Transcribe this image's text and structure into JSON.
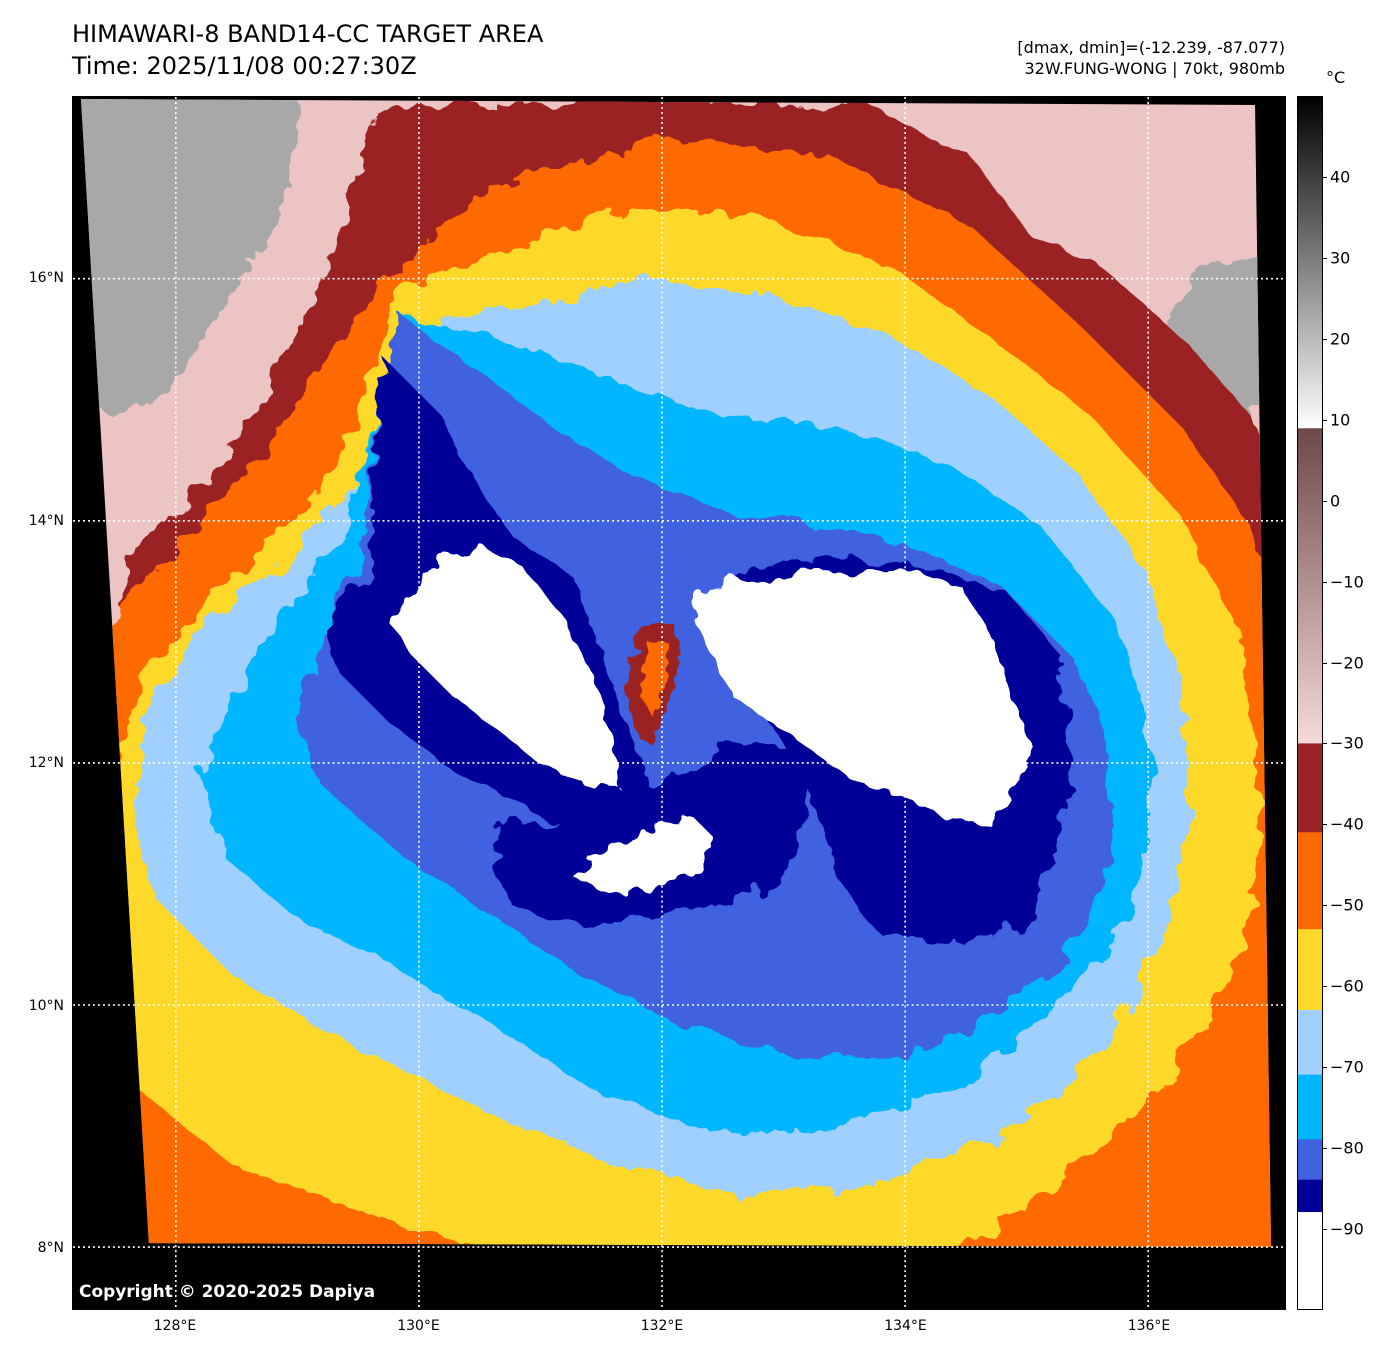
{
  "header": {
    "title_line1": "HIMAWARI-8 BAND14-CC TARGET AREA",
    "title_line2": "Time: 2025/11/08 00:27:30Z",
    "info_line1": "[dmax, dmin]=(-12.239, -87.077)",
    "info_line2": "32W.FUNG-WONG | 70kt, 980mb"
  },
  "map": {
    "copyright": "Copyright © 2020-2025 Dapiya",
    "lat_ticks": [
      {
        "value": 16,
        "label": "16°N"
      },
      {
        "value": 14,
        "label": "14°N"
      },
      {
        "value": 12,
        "label": "12°N"
      },
      {
        "value": 10,
        "label": "10°N"
      },
      {
        "value": 8,
        "label": "8°N"
      }
    ],
    "lon_ticks": [
      {
        "value": 128,
        "label": "128°E"
      },
      {
        "value": 130,
        "label": "130°E"
      },
      {
        "value": 132,
        "label": "132°E"
      },
      {
        "value": 134,
        "label": "134°E"
      },
      {
        "value": 136,
        "label": "136°E"
      }
    ],
    "lat_range": [
      7.5,
      17.5
    ],
    "lon_range": [
      127.2,
      137.2
    ],
    "gridlines": true
  },
  "colorbar": {
    "unit": "°C",
    "range": [
      -100,
      50
    ],
    "ticks": [
      {
        "value": 40,
        "label": "40"
      },
      {
        "value": 30,
        "label": "30"
      },
      {
        "value": 20,
        "label": "20"
      },
      {
        "value": 10,
        "label": "10"
      },
      {
        "value": 0,
        "label": "0"
      },
      {
        "value": -10,
        "label": "−10"
      },
      {
        "value": -20,
        "label": "−20"
      },
      {
        "value": -30,
        "label": "−30"
      },
      {
        "value": -40,
        "label": "−40"
      },
      {
        "value": -50,
        "label": "−50"
      },
      {
        "value": -60,
        "label": "−60"
      },
      {
        "value": -70,
        "label": "−70"
      },
      {
        "value": -80,
        "label": "−80"
      },
      {
        "value": -90,
        "label": "−90"
      }
    ],
    "bands": [
      {
        "from": 9,
        "to": 50,
        "color_from": "#ffffff",
        "color_to": "#000000"
      },
      {
        "from": -30,
        "to": 9,
        "color_from": "#f6dada",
        "color_to": "#6e4848"
      },
      {
        "from": -41,
        "to": -30,
        "color": "#9b2222"
      },
      {
        "from": -53,
        "to": -41,
        "color": "#ff6a00"
      },
      {
        "from": -63,
        "to": -53,
        "color": "#ffd92a"
      },
      {
        "from": -71,
        "to": -63,
        "color": "#a0d0ff"
      },
      {
        "from": -79,
        "to": -71,
        "color": "#00b7ff"
      },
      {
        "from": -84,
        "to": -79,
        "color": "#3f62e0"
      },
      {
        "from": -88,
        "to": -84,
        "color": "#000099"
      },
      {
        "from": -100,
        "to": -88,
        "color": "#ffffff"
      }
    ]
  },
  "palette": {
    "pink": "#ecc4c4",
    "gray": "#a8a8a8",
    "brown": "#9b2222",
    "orange": "#ff6a00",
    "yellow": "#ffd92a",
    "lightblue": "#a0d0ff",
    "cyan": "#00b7ff",
    "blue": "#3f62e0",
    "navy": "#000099",
    "white": "#ffffff",
    "background": "#000000"
  }
}
